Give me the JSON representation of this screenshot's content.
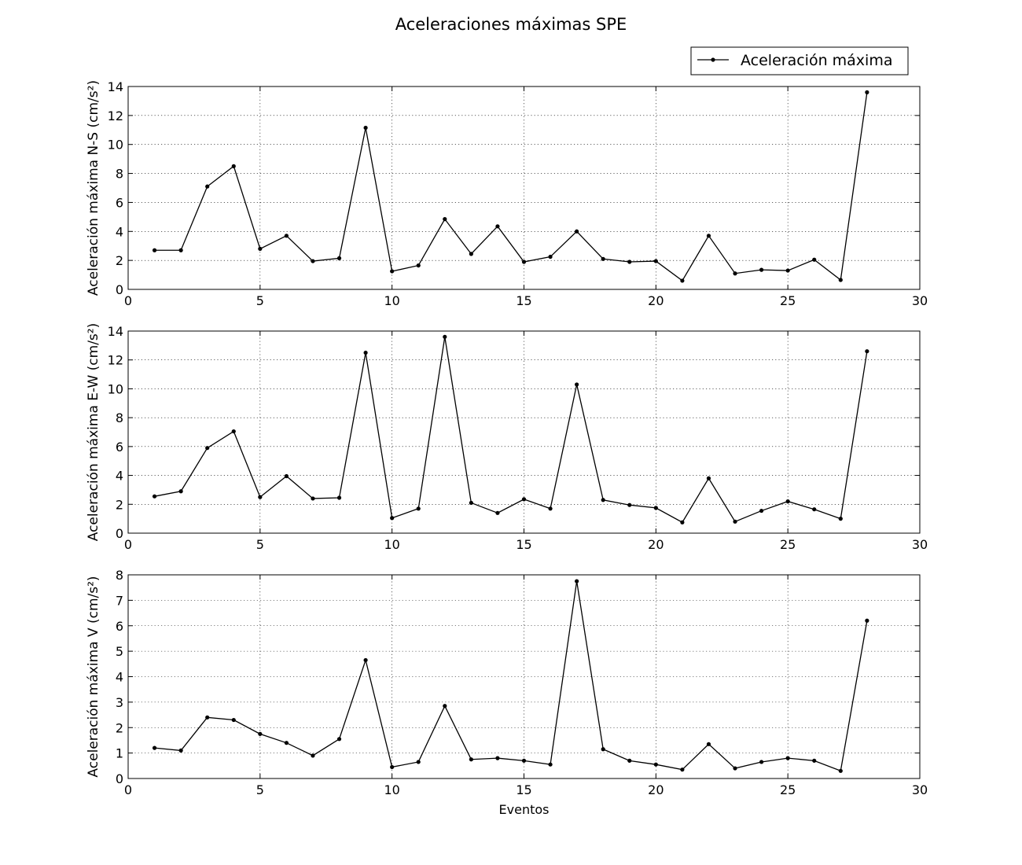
{
  "figure": {
    "title": "Aceleraciones máximas SPE",
    "legend": {
      "label": "Aceleración máxima",
      "placement": "upper-right"
    },
    "colors": {
      "line": "#000000",
      "marker": "#000000",
      "background": "#ffffff"
    }
  },
  "chart_data": [
    {
      "type": "line",
      "title": "",
      "xlabel": "",
      "ylabel": "Aceleración máxima N-S (cm/s²)",
      "xlim": [
        0,
        30
      ],
      "ylim": [
        0,
        14
      ],
      "xticks": [
        0,
        5,
        10,
        15,
        20,
        25,
        30
      ],
      "yticks": [
        0,
        2,
        4,
        6,
        8,
        10,
        12,
        14
      ],
      "grid": true,
      "series": [
        {
          "name": "Aceleración máxima",
          "x": [
            1,
            2,
            3,
            4,
            5,
            6,
            7,
            8,
            9,
            10,
            11,
            12,
            13,
            14,
            15,
            16,
            17,
            18,
            19,
            20,
            21,
            22,
            23,
            24,
            25,
            26,
            27,
            28
          ],
          "y": [
            2.7,
            2.7,
            7.1,
            8.5,
            2.8,
            3.7,
            1.95,
            2.15,
            11.15,
            1.25,
            1.65,
            4.85,
            2.45,
            4.35,
            1.9,
            2.25,
            4.0,
            2.1,
            1.9,
            1.95,
            0.6,
            3.7,
            1.1,
            1.35,
            1.3,
            2.05,
            0.65,
            13.6
          ]
        }
      ]
    },
    {
      "type": "line",
      "title": "",
      "xlabel": "",
      "ylabel": "Aceleración máxima E-W (cm/s²)",
      "xlim": [
        0,
        30
      ],
      "ylim": [
        0,
        14
      ],
      "xticks": [
        0,
        5,
        10,
        15,
        20,
        25,
        30
      ],
      "yticks": [
        0,
        2,
        4,
        6,
        8,
        10,
        12,
        14
      ],
      "grid": true,
      "series": [
        {
          "name": "",
          "x": [
            1,
            2,
            3,
            4,
            5,
            6,
            7,
            8,
            9,
            10,
            11,
            12,
            13,
            14,
            15,
            16,
            17,
            18,
            19,
            20,
            21,
            22,
            23,
            24,
            25,
            26,
            27,
            28
          ],
          "y": [
            2.55,
            2.9,
            5.9,
            7.05,
            2.5,
            3.95,
            2.4,
            2.45,
            12.5,
            1.05,
            1.7,
            13.6,
            2.1,
            1.4,
            2.35,
            1.7,
            10.3,
            2.3,
            1.95,
            1.75,
            0.75,
            3.8,
            0.8,
            1.55,
            2.2,
            1.65,
            1.0,
            12.6
          ]
        }
      ]
    },
    {
      "type": "line",
      "title": "",
      "xlabel": "Eventos",
      "ylabel": "Aceleración máxima V (cm/s²)",
      "xlim": [
        0,
        30
      ],
      "ylim": [
        0,
        8
      ],
      "xticks": [
        0,
        5,
        10,
        15,
        20,
        25,
        30
      ],
      "yticks": [
        0,
        1,
        2,
        3,
        4,
        5,
        6,
        7,
        8
      ],
      "grid": true,
      "series": [
        {
          "name": "",
          "x": [
            1,
            2,
            3,
            4,
            5,
            6,
            7,
            8,
            9,
            10,
            11,
            12,
            13,
            14,
            15,
            16,
            17,
            18,
            19,
            20,
            21,
            22,
            23,
            24,
            25,
            26,
            27,
            28
          ],
          "y": [
            1.2,
            1.1,
            2.4,
            2.3,
            1.75,
            1.4,
            0.9,
            1.55,
            4.65,
            0.45,
            0.65,
            2.85,
            0.75,
            0.8,
            0.7,
            0.55,
            7.75,
            1.15,
            0.7,
            0.55,
            0.35,
            1.35,
            0.4,
            0.65,
            0.8,
            0.7,
            0.3,
            6.2
          ]
        }
      ]
    }
  ]
}
